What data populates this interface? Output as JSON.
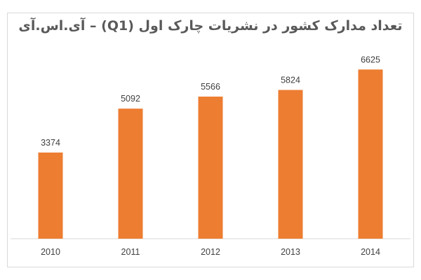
{
  "chart_data": {
    "type": "bar",
    "title": "تعداد مدارک کشور در نشریات چارک اول (Q1) – آی.اس.آی",
    "categories": [
      "2010",
      "2011",
      "2012",
      "2013",
      "2014"
    ],
    "values": [
      3374,
      5092,
      5566,
      5824,
      6625
    ],
    "ylim": [
      0,
      7100
    ],
    "grid": false,
    "legend": "none",
    "bar_color": "#ED7D31",
    "axis_color": "#d9d9d9"
  }
}
